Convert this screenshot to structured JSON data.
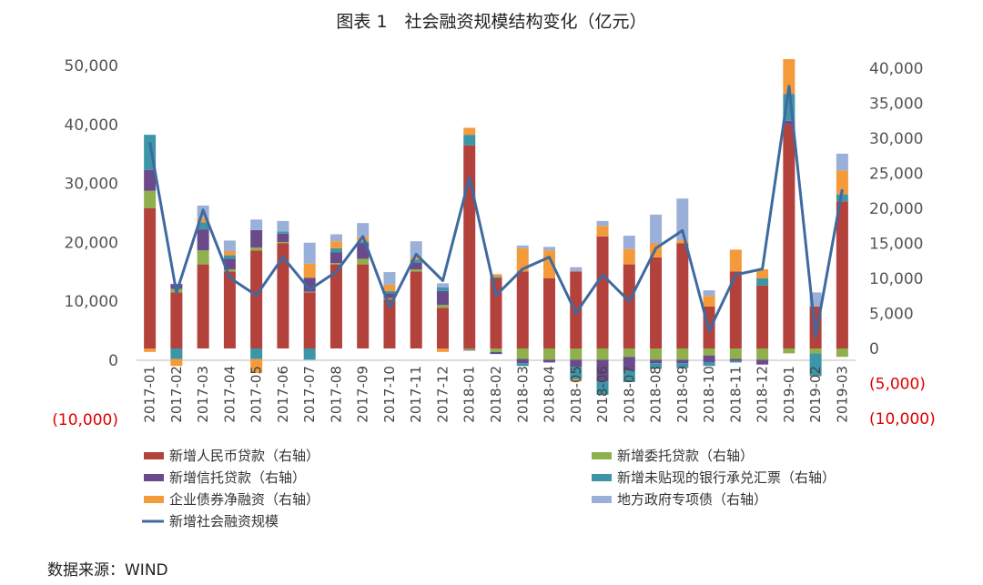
{
  "source_label": "数据来源：WIND",
  "chart_data": {
    "type": "bar",
    "title": "图表 1　社会融资规模结构变化（亿元）",
    "categories": [
      "2017-01",
      "2017-02",
      "2017-03",
      "2017-04",
      "2017-05",
      "2017-06",
      "2017-07",
      "2017-08",
      "2017-09",
      "2017-10",
      "2017-11",
      "2017-12",
      "2018-01",
      "2018-02",
      "2018-03",
      "2018-04",
      "2018-05",
      "2018-06",
      "2018-07",
      "2018-08",
      "2018-09",
      "2018-10",
      "2018-11",
      "2018-12",
      "2019-01",
      "2019-02",
      "2019-03"
    ],
    "y_left": {
      "ticks": [
        50000,
        40000,
        30000,
        20000,
        10000,
        0,
        -10000
      ],
      "tick_labels": [
        "50,000",
        "40,000",
        "30,000",
        "20,000",
        "10,000",
        "0",
        "(10,000)"
      ],
      "range": [
        -10000,
        50000
      ]
    },
    "y_right": {
      "ticks": [
        40000,
        35000,
        30000,
        25000,
        20000,
        15000,
        10000,
        5000,
        0,
        -5000,
        -10000
      ],
      "tick_labels": [
        "40,000",
        "35,000",
        "30,000",
        "25,000",
        "20,000",
        "15,000",
        "10,000",
        "5,000",
        "0",
        "(5,000)",
        "(10,000)"
      ],
      "range": [
        -10000,
        40000
      ]
    },
    "negative_color": "#e00000",
    "grid": false,
    "legend_position": "bottom",
    "series": [
      {
        "name": "新增人民币贷款（右轴）",
        "kind": "bar",
        "axis": "right",
        "color": "#b3413c",
        "values": [
          20000,
          8000,
          12000,
          11000,
          14000,
          15000,
          8000,
          12000,
          12000,
          7000,
          11000,
          5800,
          29000,
          10000,
          11000,
          10000,
          11000,
          16000,
          12000,
          13000,
          15000,
          6000,
          11000,
          9000,
          32000,
          6000,
          21000
        ]
      },
      {
        "name": "新增委托贷款（右轴）",
        "kind": "bar",
        "axis": "right",
        "color": "#8fb04d",
        "values": [
          2500,
          500,
          2000,
          300,
          400,
          200,
          100,
          200,
          800,
          200,
          300,
          400,
          -200,
          -500,
          -1500,
          -1600,
          -1600,
          -1600,
          -1200,
          -1600,
          -1600,
          -1000,
          -1500,
          -1600,
          -700,
          -700,
          -1200
        ]
      },
      {
        "name": "新增信托贷款（右轴）",
        "kind": "bar",
        "axis": "right",
        "color": "#6b4a8c",
        "values": [
          3000,
          700,
          3000,
          1500,
          2500,
          1200,
          2000,
          1500,
          2200,
          700,
          1000,
          2000,
          -100,
          -300,
          -600,
          -400,
          -1000,
          -3100,
          -2000,
          -500,
          -500,
          -1000,
          -300,
          -700,
          500,
          0,
          0
        ]
      },
      {
        "name": "新增未贴现的银行承兑汇票（右轴）",
        "kind": "bar",
        "axis": "right",
        "color": "#3d96a8",
        "values": [
          5000,
          -1500,
          1000,
          500,
          -1500,
          300,
          -1600,
          600,
          300,
          300,
          400,
          500,
          1500,
          200,
          -400,
          0,
          -1800,
          -1900,
          -1600,
          -800,
          -700,
          -500,
          -200,
          1000,
          3800,
          -3200,
          1000
        ]
      },
      {
        "name": "企业债券净融资（右轴）",
        "kind": "bar",
        "axis": "right",
        "color": "#f39a3b",
        "values": [
          -500,
          -1000,
          600,
          600,
          -2000,
          0,
          2000,
          1000,
          600,
          900,
          400,
          -500,
          1000,
          400,
          3300,
          4000,
          -300,
          1500,
          2200,
          2000,
          400,
          1500,
          3100,
          1300,
          5000,
          -100,
          3400
        ]
      },
      {
        "name": "地方政府专项债（右轴）",
        "kind": "bar",
        "axis": "right",
        "color": "#9bb0d8",
        "values": [
          0,
          0,
          1800,
          1500,
          1500,
          1500,
          3000,
          1000,
          2000,
          1800,
          2200,
          600,
          0,
          0,
          400,
          500,
          600,
          700,
          1900,
          4100,
          6000,
          800,
          0,
          0,
          0,
          2000,
          2400
        ]
      },
      {
        "name": "新增社会融资规模",
        "kind": "line",
        "axis": "left",
        "color": "#3f6aa0",
        "values": [
          37000,
          11500,
          25500,
          14000,
          11000,
          17500,
          12000,
          15000,
          21000,
          9000,
          18000,
          13500,
          31000,
          11000,
          15500,
          17500,
          8000,
          14500,
          10000,
          19000,
          22000,
          5000,
          14500,
          15500,
          46500,
          4000,
          29000
        ]
      }
    ]
  }
}
